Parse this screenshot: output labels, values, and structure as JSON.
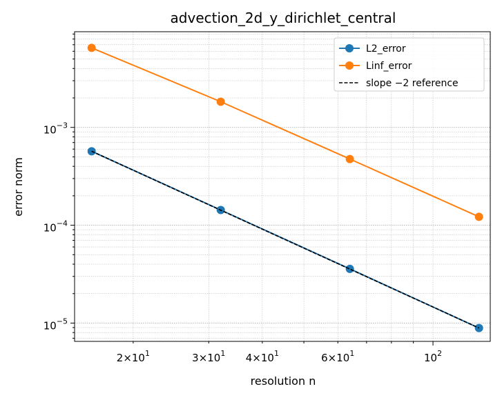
{
  "chart_data": {
    "type": "line",
    "title": "advection_2d_y_dirichlet_central",
    "xlabel": "resolution n",
    "ylabel": "error norm",
    "xscale": "log",
    "yscale": "log",
    "xlim": [
      14.6,
      136
    ],
    "ylim": [
      6.5e-06,
      0.0095
    ],
    "grid": "both (major and minor, dotted)",
    "legend_position": "top-right",
    "x": [
      16,
      32,
      64,
      128
    ],
    "x_tick_labels": [
      {
        "value": 20,
        "base": "2×10",
        "exp": "1"
      },
      {
        "value": 30,
        "base": "3×10",
        "exp": "1"
      },
      {
        "value": 40,
        "base": "4×10",
        "exp": "1"
      },
      {
        "value": 60,
        "base": "6×10",
        "exp": "1"
      },
      {
        "value": 100,
        "base": "10",
        "exp": "2"
      }
    ],
    "y_tick_labels": [
      {
        "value": 1e-05,
        "base": "10",
        "exp": "−5"
      },
      {
        "value": 0.0001,
        "base": "10",
        "exp": "−4"
      },
      {
        "value": 0.001,
        "base": "10",
        "exp": "−3"
      }
    ],
    "series": [
      {
        "name": "L2_error",
        "color": "#1f77b4",
        "style": "solid-marker",
        "values": [
          0.00057,
          0.000143,
          3.58e-05,
          8.9e-06
        ]
      },
      {
        "name": "Linf_error",
        "color": "#ff7f0e",
        "style": "solid-marker",
        "values": [
          0.0065,
          0.00183,
          0.000475,
          0.000122
        ]
      },
      {
        "name": "slope −2 reference",
        "color": "#000000",
        "style": "dashed",
        "values": [
          0.00057,
          0.0001425,
          3.56e-05,
          8.9e-06
        ]
      }
    ]
  }
}
